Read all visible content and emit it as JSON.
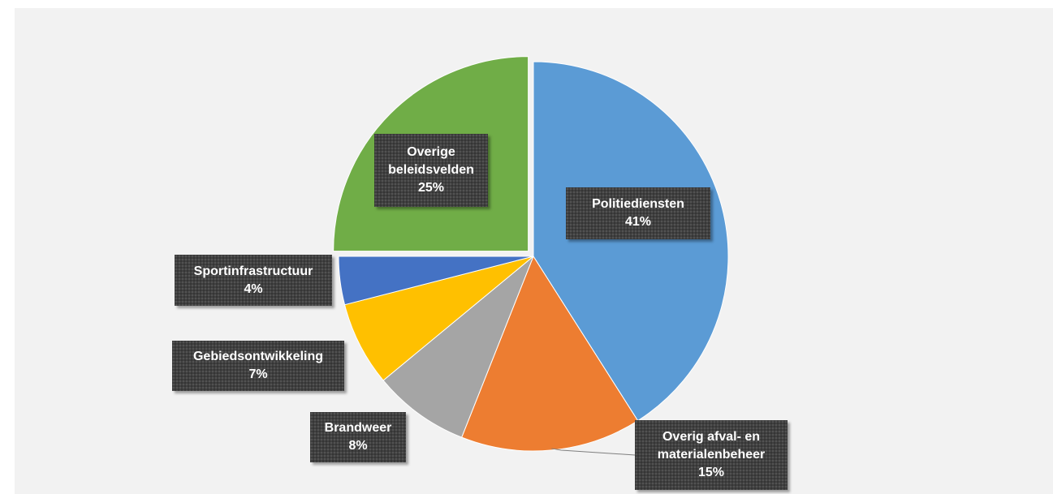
{
  "chart_data": {
    "type": "pie",
    "title": "",
    "legend": "none",
    "slices": [
      {
        "label_lines": [
          "Politiediensten"
        ],
        "value_label": "41%",
        "value": 41,
        "color": "#5b9bd5",
        "exploded": false
      },
      {
        "label_lines": [
          "Overig afval- en",
          "materialenbeheer"
        ],
        "value_label": "15%",
        "value": 15,
        "color": "#ed7d31",
        "exploded": false
      },
      {
        "label_lines": [
          "Brandweer"
        ],
        "value_label": "8%",
        "value": 8,
        "color": "#a5a5a5",
        "exploded": false
      },
      {
        "label_lines": [
          "Gebiedsontwikkeling"
        ],
        "value_label": "7%",
        "value": 7,
        "color": "#ffc000",
        "exploded": false
      },
      {
        "label_lines": [
          "Sportinfrastructuur"
        ],
        "value_label": "4%",
        "value": 4,
        "color": "#4472c4",
        "exploded": false
      },
      {
        "label_lines": [
          "Overige",
          "beleidsvelden"
        ],
        "value_label": "25%",
        "value": 25,
        "color": "#70ad47",
        "exploded": true
      }
    ]
  }
}
